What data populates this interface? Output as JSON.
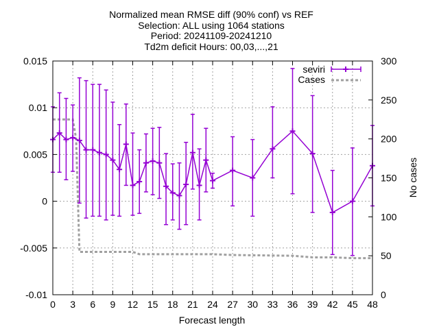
{
  "chart_data": {
    "type": "line",
    "title_lines": [
      "Normalized mean RMSE diff (90% conf) vs REF",
      "Selection: ALL using  1064 stations",
      "Period: 20241109-20241210",
      "Td2m deficit    Hours: 00,03,...,21"
    ],
    "xlabel": "Forecast length",
    "ylabel_right": "No cases",
    "xlim": [
      0,
      48
    ],
    "ylim": [
      -0.01,
      0.015
    ],
    "y2lim": [
      0,
      300
    ],
    "x_ticks": [
      0,
      3,
      6,
      9,
      12,
      15,
      18,
      21,
      24,
      27,
      30,
      33,
      36,
      39,
      42,
      45,
      48
    ],
    "y_ticks": [
      -0.01,
      -0.005,
      0,
      0.005,
      0.01,
      0.015
    ],
    "y_tick_labels": [
      "-0.01",
      "-0.005",
      "0",
      "0.005",
      "0.01",
      "0.015"
    ],
    "y2_ticks": [
      0,
      50,
      100,
      150,
      200,
      250,
      300
    ],
    "grid": true,
    "legend_position": "top-right",
    "series": [
      {
        "name": "seviri",
        "color": "#9400d3",
        "x": [
          0,
          1,
          2,
          3,
          4,
          5,
          6,
          7,
          8,
          9,
          10,
          11,
          12,
          13,
          14,
          15,
          16,
          17,
          18,
          19,
          20,
          21,
          22,
          23,
          24,
          27,
          30,
          33,
          36,
          39,
          42,
          45,
          48
        ],
        "y": [
          0.0066,
          0.0073,
          0.0066,
          0.0068,
          0.0065,
          0.0055,
          0.0055,
          0.0052,
          0.005,
          0.0044,
          0.0034,
          0.0061,
          0.0017,
          0.0021,
          0.0041,
          0.0043,
          0.0041,
          0.0016,
          0.0009,
          0.0006,
          0.0018,
          0.0052,
          0.0017,
          0.0044,
          0.0022,
          0.0033,
          0.0025,
          0.0056,
          0.0075,
          0.0051,
          -0.0012,
          0.0,
          0.0038
        ],
        "err_low": [
          0.0031,
          0.0031,
          0.0023,
          0.0032,
          -0.0002,
          -0.0018,
          -0.0016,
          -0.0016,
          -0.002,
          -0.0015,
          -0.0016,
          0.0017,
          -0.0015,
          -0.0013,
          0.001,
          0.0007,
          0.0003,
          -0.0025,
          -0.002,
          -0.003,
          -0.0025,
          0.0013,
          -0.002,
          0.001,
          0.0014,
          -0.0005,
          -0.0016,
          0.0025,
          0.0008,
          -0.0012,
          -0.0057,
          -0.0058,
          -0.0005
        ],
        "err_high": [
          0.0101,
          0.0116,
          0.011,
          0.0103,
          0.0132,
          0.0129,
          0.0125,
          0.0125,
          0.0119,
          0.0106,
          0.0082,
          0.0104,
          0.0073,
          0.0055,
          0.0072,
          0.0078,
          0.0079,
          0.0051,
          0.004,
          0.0041,
          0.0063,
          0.0093,
          0.0056,
          0.0078,
          0.003,
          0.0069,
          0.0066,
          0.0101,
          0.0142,
          0.0113,
          0.0033,
          0.0057,
          0.0081
        ]
      },
      {
        "name": "Cases",
        "color": "#a0a0a0",
        "axis": "y2",
        "x": [
          0,
          1,
          2,
          3,
          3.5,
          4,
          9,
          12,
          13,
          24,
          27,
          36,
          39,
          42,
          45,
          48
        ],
        "y": [
          225,
          225,
          225,
          225,
          200,
          55,
          55,
          55,
          52,
          52,
          51,
          50,
          48,
          48,
          47,
          47
        ]
      }
    ]
  }
}
